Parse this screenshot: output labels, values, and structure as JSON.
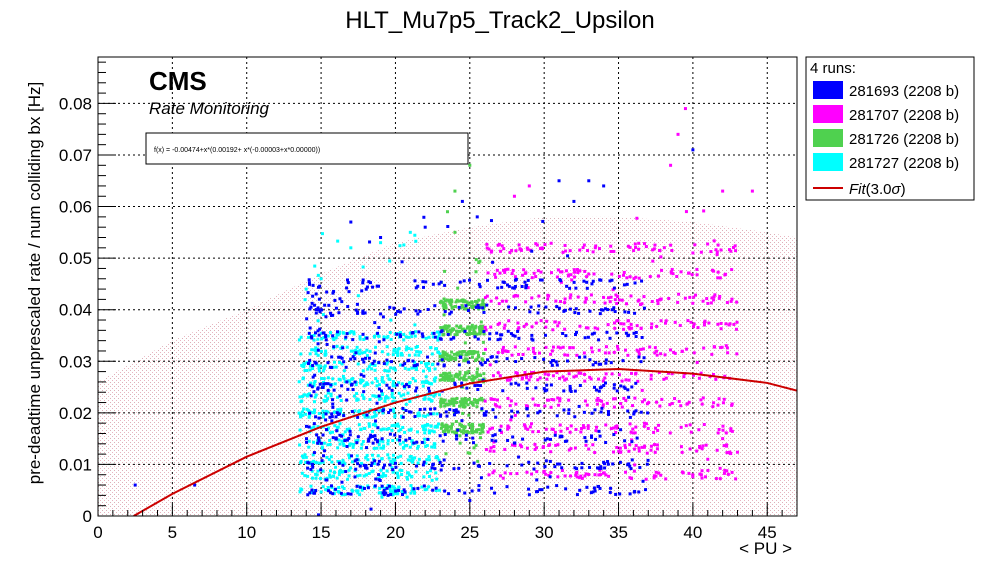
{
  "chart_data": {
    "type": "scatter",
    "title": "HLT_Mu7p5_Track2_Upsilon",
    "xlabel": "< PU >",
    "ylabel": "pre-deadtime unprescaled rate / num colliding bx [Hz]",
    "xlim": [
      0,
      47
    ],
    "ylim": [
      0,
      0.089
    ],
    "x_ticks": [
      "0",
      "5",
      "10",
      "15",
      "20",
      "25",
      "30",
      "35",
      "40",
      "45"
    ],
    "y_ticks": [
      "0",
      "0.01",
      "0.02",
      "0.03",
      "0.04",
      "0.05",
      "0.06",
      "0.07",
      "0.08"
    ],
    "grid": true,
    "legend_position": "outside-right",
    "legend_header": "4 runs:",
    "cms_label": "CMS",
    "cms_sublabel": "Rate Monitoring",
    "fit_formula": "f(x) = -0.00474+x*(0.00192+ x*(-0.00003+x*0.00000))",
    "fit": {
      "name": "Fit(3.0σ)",
      "label_main": "Fit",
      "label_arg": "(3.0",
      "label_sigma": "σ",
      "label_end": ")",
      "coefficients": [
        -0.00474,
        0.00192,
        -3e-05,
        0.0
      ],
      "curve": [
        [
          2.4,
          0.0
        ],
        [
          5,
          0.0043
        ],
        [
          10,
          0.0115
        ],
        [
          15,
          0.0173
        ],
        [
          20,
          0.022
        ],
        [
          25,
          0.0257
        ],
        [
          30,
          0.028
        ],
        [
          35,
          0.0285
        ],
        [
          40,
          0.0276
        ],
        [
          45,
          0.0258
        ],
        [
          47,
          0.0243
        ]
      ],
      "band": [
        [
          0,
          0.026
        ],
        [
          5,
          0.034
        ],
        [
          10,
          0.04
        ],
        [
          15,
          0.047
        ],
        [
          20,
          0.053
        ],
        [
          25,
          0.056
        ],
        [
          30,
          0.058
        ],
        [
          35,
          0.058
        ],
        [
          40,
          0.057
        ],
        [
          45,
          0.055
        ],
        [
          47,
          0.054
        ]
      ],
      "color": "#cc0000"
    },
    "series": [
      {
        "name": "281693 (2208 b)",
        "color": "#0000ff",
        "bands": [
          {
            "x": [
              14,
              37
            ],
            "y": [
              0.0,
              0.058
            ],
            "levels": [
              0.005,
              0.01,
              0.015,
              0.02,
              0.025,
              0.03,
              0.035,
              0.04,
              0.045
            ]
          },
          {
            "x": [
              14,
              19
            ],
            "y": [
              0.005,
              0.045
            ]
          }
        ],
        "outliers": [
          [
            2.5,
            0.006
          ],
          [
            6.5,
            0.006
          ],
          [
            17,
            0.057
          ],
          [
            19,
            0.054
          ],
          [
            22,
            0.056
          ],
          [
            24.5,
            0.061
          ],
          [
            25.5,
            0.058
          ],
          [
            31,
            0.065
          ],
          [
            32,
            0.061
          ],
          [
            33,
            0.065
          ],
          [
            34,
            0.064
          ],
          [
            40,
            0.071
          ],
          [
            19.5,
            0.004
          ],
          [
            22.5,
            0.005
          ],
          [
            25,
            0.003
          ],
          [
            29.5,
            0.007
          ]
        ]
      },
      {
        "name": "281707 (2208 b)",
        "color": "#ff00ff",
        "bands": [
          {
            "x": [
              26,
              43
            ],
            "y": [
              0.006,
              0.062
            ],
            "levels": [
              0.008,
              0.013,
              0.017,
              0.022,
              0.027,
              0.032,
              0.037,
              0.042,
              0.047,
              0.052
            ]
          }
        ],
        "outliers": [
          [
            28,
            0.062
          ],
          [
            29,
            0.064
          ],
          [
            38.5,
            0.068
          ],
          [
            39,
            0.074
          ],
          [
            39.5,
            0.079
          ],
          [
            42,
            0.063
          ],
          [
            44,
            0.063
          ],
          [
            40,
            0.051
          ],
          [
            41,
            0.011
          ],
          [
            42,
            0.015
          ]
        ]
      },
      {
        "name": "281726 (2208 b)",
        "color": "#4fd14f",
        "bands": [
          {
            "x": [
              23,
              26
            ],
            "y": [
              0.008,
              0.054
            ],
            "levels": [
              0.017,
              0.022,
              0.027,
              0.031,
              0.036,
              0.041
            ]
          }
        ],
        "outliers": [
          [
            24,
            0.063
          ],
          [
            25,
            0.068
          ],
          [
            23.5,
            0.059
          ],
          [
            24,
            0.055
          ]
        ]
      },
      {
        "name": "281727 (2208 b)",
        "color": "#00ffff",
        "bands": [
          {
            "x": [
              13.5,
              23
            ],
            "y": [
              0.003,
              0.055
            ],
            "levels": [
              0.005,
              0.008,
              0.011,
              0.014,
              0.017,
              0.02,
              0.023,
              0.026,
              0.029,
              0.032,
              0.035
            ]
          }
        ],
        "outliers": [
          [
            14,
            0.044
          ],
          [
            15,
            0.046
          ],
          [
            17,
            0.052
          ],
          [
            19,
            0.053
          ],
          [
            21,
            0.055
          ]
        ]
      }
    ]
  }
}
